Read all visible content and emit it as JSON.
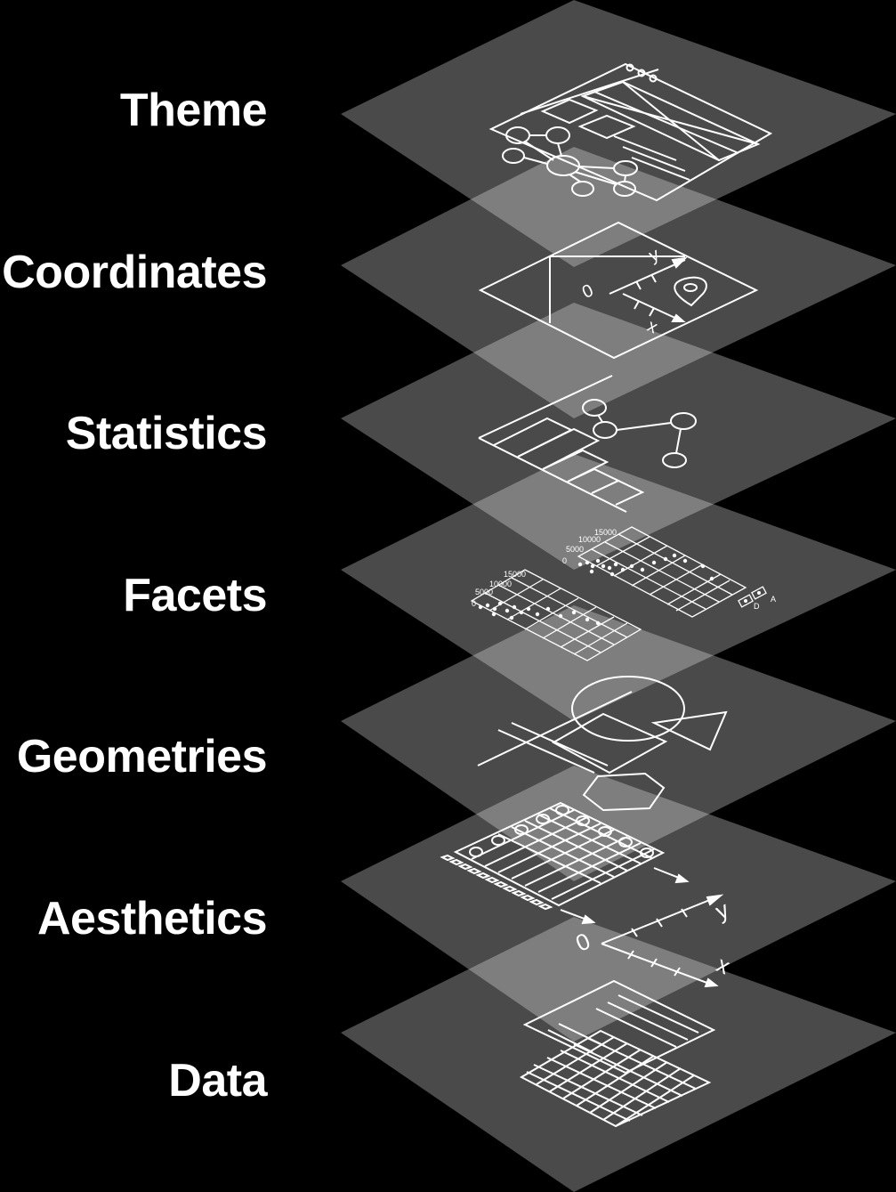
{
  "diagram": {
    "layers": [
      {
        "id": "theme",
        "label": "Theme"
      },
      {
        "id": "coordinates",
        "label": "Coordinates"
      },
      {
        "id": "statistics",
        "label": "Statistics"
      },
      {
        "id": "facets",
        "label": "Facets"
      },
      {
        "id": "geometries",
        "label": "Geometries"
      },
      {
        "id": "aesthetics",
        "label": "Aesthetics"
      },
      {
        "id": "data",
        "label": "Data"
      }
    ],
    "coordinates_icon": {
      "y_label": "y",
      "x_label": "x",
      "origin_label": "0"
    },
    "facets_icon": {
      "tick_labels": [
        "15000",
        "10000",
        "5000",
        "0"
      ],
      "panel_labels": [
        "A",
        "D"
      ]
    },
    "aesthetics_icon": {
      "y_label": "y",
      "x_label": "x",
      "origin_label": "0"
    },
    "colors": {
      "background": "#000000",
      "plane_fill": "rgba(255,255,255,0.29)",
      "icon_stroke": "#ffffff",
      "label_text": "#ffffff"
    }
  }
}
